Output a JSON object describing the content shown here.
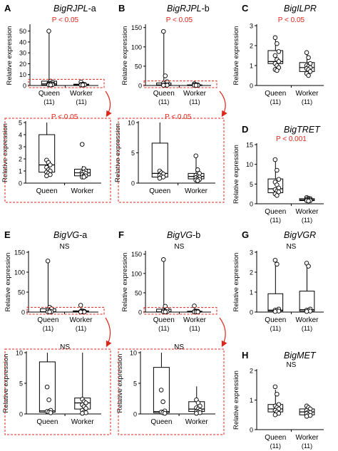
{
  "figure": {
    "ylabel": "Relative expression",
    "colors": {
      "sig": "#e0251b",
      "axis": "#000000",
      "box": "#000000",
      "dash": "#e0251b"
    }
  },
  "chart_data": [
    {
      "panel_letter": "A",
      "gene": "BigRJPL",
      "gene_suffix": "-a",
      "type": "boxplot",
      "stat": "P < 0.05",
      "stat_significant": true,
      "categories": [
        "Queen",
        "Worker"
      ],
      "counts": [
        "(11)",
        "(11)"
      ],
      "ylabel": "Relative expression",
      "ylim": [
        0,
        55
      ],
      "yticks": [
        0,
        10,
        20,
        30,
        40,
        50
      ],
      "zoom_region": [
        0,
        5
      ],
      "groups": [
        {
          "name": "Queen",
          "q1": 0.5,
          "median": 1.5,
          "q3": 4,
          "whisker_low": 0.3,
          "whisker_high": 50,
          "points": [
            50,
            4,
            3,
            2,
            1.8,
            1.5,
            1.2,
            0.8,
            0.7,
            0.6,
            0.5
          ]
        },
        {
          "name": "Worker",
          "q1": 0.6,
          "median": 0.9,
          "q3": 1.2,
          "whisker_low": 0.5,
          "whisker_high": 3.2,
          "points": [
            3.2,
            1.2,
            1.0,
            0.9,
            0.9,
            0.8,
            0.7,
            0.6,
            0.6,
            0.5,
            0.5
          ]
        }
      ]
    },
    {
      "panel_letter": "",
      "gene": "",
      "gene_suffix": "",
      "type": "boxplot",
      "stat": "P < 0.05",
      "stat_significant": true,
      "categories": [
        "Queen",
        "Worker"
      ],
      "counts": [],
      "ylabel": "Relative expression",
      "ylim": [
        0,
        5
      ],
      "yticks": [
        0,
        1,
        2,
        3,
        4,
        5
      ],
      "groups": [
        {
          "name": "Queen",
          "q1": 0.9,
          "median": 1.5,
          "q3": 4,
          "whisker_low": 0.6,
          "whisker_high": 5,
          "points": [
            1.9,
            1.7,
            1.5,
            1.3,
            1.1,
            1.0,
            0.9,
            0.8,
            0.7,
            0.6
          ]
        },
        {
          "name": "Worker",
          "q1": 0.6,
          "median": 0.85,
          "q3": 1.15,
          "whisker_low": 0.5,
          "whisker_high": 1.4,
          "points": [
            3.2,
            1.2,
            1.0,
            0.9,
            0.9,
            0.8,
            0.7,
            0.6,
            0.6,
            0.5,
            0.5
          ]
        }
      ]
    },
    {
      "panel_letter": "B",
      "gene": "BigRJPL",
      "gene_suffix": "-b",
      "type": "boxplot",
      "stat": "P < 0.05",
      "stat_significant": true,
      "categories": [
        "Queen",
        "Worker"
      ],
      "counts": [
        "(11)",
        "(11)"
      ],
      "ylabel": "Relative expression",
      "ylim": [
        0,
        155
      ],
      "yticks": [
        0,
        50,
        100,
        150
      ],
      "zoom_region": [
        0,
        10
      ],
      "groups": [
        {
          "name": "Queen",
          "q1": 0.8,
          "median": 1.5,
          "q3": 6.5,
          "whisker_low": 0.5,
          "whisker_high": 140,
          "points": [
            140,
            25,
            10,
            6,
            2,
            1.5,
            1.2,
            1,
            0.8,
            0.6
          ]
        },
        {
          "name": "Worker",
          "q1": 0.6,
          "median": 1.0,
          "q3": 1.6,
          "whisker_low": 0.4,
          "whisker_high": 4.5,
          "points": [
            4.5,
            2,
            1.6,
            1.3,
            1.1,
            1,
            0.9,
            0.7,
            0.6,
            0.5,
            0.4
          ]
        }
      ]
    },
    {
      "panel_letter": "",
      "gene": "",
      "gene_suffix": "",
      "type": "boxplot",
      "stat": "P < 0.05",
      "stat_significant": true,
      "categories": [
        "Queen",
        "Worker"
      ],
      "counts": [],
      "ylabel": "Relative expression",
      "ylim": [
        0,
        10
      ],
      "yticks": [
        0,
        5,
        10
      ],
      "groups": [
        {
          "name": "Queen",
          "q1": 1.0,
          "median": 1.6,
          "q3": 6.6,
          "whisker_low": 0.6,
          "whisker_high": 10,
          "points": [
            2.0,
            1.7,
            1.5,
            1.3,
            1.1,
            1.0,
            0.8
          ]
        },
        {
          "name": "Worker",
          "q1": 0.7,
          "median": 1.1,
          "q3": 1.6,
          "whisker_low": 0.4,
          "whisker_high": 4.3,
          "points": [
            4.5,
            2.2,
            1.6,
            1.3,
            1.1,
            1.0,
            0.9,
            0.7,
            0.6,
            0.5,
            0.4
          ]
        }
      ]
    },
    {
      "panel_letter": "C",
      "gene": "BigILPR",
      "gene_suffix": "",
      "type": "boxplot",
      "stat": "P < 0.05",
      "stat_significant": true,
      "categories": [
        "Queen",
        "Worker"
      ],
      "counts": [
        "(11)",
        "(11)"
      ],
      "ylabel": "Relative expression",
      "ylim": [
        0,
        3
      ],
      "yticks": [
        0,
        1,
        2,
        3
      ],
      "groups": [
        {
          "name": "Queen",
          "q1": 1.1,
          "median": 1.2,
          "q3": 1.75,
          "whisker_low": 0.8,
          "whisker_high": 2.4,
          "points": [
            2.4,
            2.1,
            1.7,
            1.5,
            1.3,
            1.2,
            1.1,
            1.0,
            0.9,
            0.8,
            0.75
          ]
        },
        {
          "name": "Worker",
          "q1": 0.7,
          "median": 0.9,
          "q3": 1.15,
          "whisker_low": 0.5,
          "whisker_high": 1.65,
          "points": [
            1.65,
            1.4,
            1.1,
            1.0,
            0.95,
            0.9,
            0.85,
            0.8,
            0.7,
            0.6,
            0.5
          ]
        }
      ]
    },
    {
      "panel_letter": "D",
      "gene": "BigTRET",
      "gene_suffix": "",
      "type": "boxplot",
      "stat": "P < 0.001",
      "stat_significant": true,
      "categories": [
        "Queen",
        "Worker"
      ],
      "counts": [
        "(11)",
        "(11)"
      ],
      "ylabel": "Relative expression",
      "ylim": [
        0,
        15
      ],
      "yticks": [
        0,
        5,
        10,
        15
      ],
      "groups": [
        {
          "name": "Queen",
          "q1": 2.8,
          "median": 3.8,
          "q3": 6.3,
          "whisker_low": 2.0,
          "whisker_high": 11.5,
          "points": [
            11.2,
            8.5,
            6.2,
            5.5,
            4.8,
            4.0,
            3.6,
            3.2,
            3.0,
            2.5,
            2.1
          ]
        },
        {
          "name": "Worker",
          "q1": 0.8,
          "median": 1.0,
          "q3": 1.3,
          "whisker_low": 0.7,
          "whisker_high": 1.6,
          "points": [
            1.6,
            1.4,
            1.3,
            1.2,
            1.1,
            1.0,
            0.9,
            0.9,
            0.8,
            0.8,
            0.7
          ]
        }
      ]
    },
    {
      "panel_letter": "E",
      "gene": "BigVG",
      "gene_suffix": "-a",
      "type": "boxplot",
      "stat": "NS",
      "stat_significant": false,
      "categories": [
        "Queen",
        "Worker"
      ],
      "counts": [
        "(11)",
        "(11)"
      ],
      "ylabel": "Relative expression",
      "ylim": [
        0,
        150
      ],
      "yticks": [
        0,
        50,
        100,
        150
      ],
      "zoom_region": [
        0,
        10
      ],
      "groups": [
        {
          "name": "Queen",
          "q1": 0.5,
          "median": 0.8,
          "q3": 8.5,
          "whisker_low": 0.3,
          "whisker_high": 130,
          "points": [
            128,
            12,
            8,
            5,
            3,
            1,
            0.5,
            0.4
          ]
        },
        {
          "name": "Worker",
          "q1": 0.5,
          "median": 1.5,
          "q3": 3,
          "whisker_low": 0.2,
          "whisker_high": 17,
          "points": [
            17,
            3,
            2,
            1.5,
            1,
            0.8,
            0.5,
            0.4,
            0.3,
            0.2
          ]
        }
      ]
    },
    {
      "panel_letter": "",
      "gene": "",
      "gene_suffix": "",
      "type": "boxplot",
      "stat": "NS",
      "stat_significant": false,
      "categories": [
        "Queen",
        "Worker"
      ],
      "counts": [],
      "ylabel": "Relative expression",
      "ylim": [
        0,
        10
      ],
      "yticks": [
        0,
        5,
        10
      ],
      "groups": [
        {
          "name": "Queen",
          "q1": 0.3,
          "median": 0.5,
          "q3": 8.5,
          "whisker_low": 0.1,
          "whisker_high": 10,
          "points": [
            4.4,
            2.3,
            0.6,
            0.4,
            0.3,
            0.2
          ]
        },
        {
          "name": "Worker",
          "q1": 0.8,
          "median": 1.8,
          "q3": 2.6,
          "whisker_low": 0.1,
          "whisker_high": 10,
          "points": [
            2.4,
            2.0,
            1.8,
            1.5,
            1.2,
            0.9,
            0.6,
            0.3,
            0.2,
            0.1
          ]
        }
      ]
    },
    {
      "panel_letter": "F",
      "gene": "BigVG",
      "gene_suffix": "-b",
      "type": "boxplot",
      "stat": "NS",
      "stat_significant": false,
      "categories": [
        "Queen",
        "Worker"
      ],
      "counts": [
        "(11)",
        "(11)"
      ],
      "ylabel": "Relative expression",
      "ylim": [
        0,
        155
      ],
      "yticks": [
        0,
        50,
        100,
        150
      ],
      "zoom_region": [
        0,
        10
      ],
      "groups": [
        {
          "name": "Queen",
          "q1": 0.3,
          "median": 0.6,
          "q3": 7.5,
          "whisker_low": 0.1,
          "whisker_high": 138,
          "points": [
            136,
            15,
            7,
            4,
            2,
            1,
            0.6,
            0.3
          ]
        },
        {
          "name": "Worker",
          "q1": 0.4,
          "median": 0.8,
          "q3": 2.2,
          "whisker_low": 0.2,
          "whisker_high": 16,
          "points": [
            16,
            2.5,
            2,
            1.3,
            0.9,
            0.6,
            0.4,
            0.3,
            0.2
          ]
        }
      ]
    },
    {
      "panel_letter": "",
      "gene": "",
      "gene_suffix": "",
      "type": "boxplot",
      "stat": "NS",
      "stat_significant": false,
      "categories": [
        "Queen",
        "Worker"
      ],
      "counts": [],
      "ylabel": "Relative expression",
      "ylim": [
        0,
        10
      ],
      "yticks": [
        0,
        5,
        10
      ],
      "groups": [
        {
          "name": "Queen",
          "q1": 0.2,
          "median": 0.4,
          "q3": 7.6,
          "whisker_low": 0.1,
          "whisker_high": 10,
          "points": [
            3.9,
            2.0,
            0.5,
            0.3,
            0.2,
            0.1
          ]
        },
        {
          "name": "Worker",
          "q1": 0.4,
          "median": 0.8,
          "q3": 2.0,
          "whisker_low": 0.1,
          "whisker_high": 4.5,
          "points": [
            2.3,
            1.8,
            1.3,
            1.0,
            0.8,
            0.6,
            0.4,
            0.3,
            0.2,
            0.1
          ]
        }
      ]
    },
    {
      "panel_letter": "G",
      "gene": "BigVGR",
      "gene_suffix": "",
      "type": "boxplot",
      "stat": "NS",
      "stat_significant": false,
      "categories": [
        "Queen",
        "Worker"
      ],
      "counts": [
        "(11)",
        "(11)"
      ],
      "ylabel": "Relative expression",
      "ylim": [
        0,
        3
      ],
      "yticks": [
        0,
        1,
        2,
        3
      ],
      "groups": [
        {
          "name": "Queen",
          "q1": 0.05,
          "median": 0.1,
          "q3": 0.92,
          "whisker_low": 0.0,
          "whisker_high": 2.55,
          "points": [
            2.6,
            2.4,
            0.15,
            0.1,
            0.08,
            0.05,
            0.03
          ]
        },
        {
          "name": "Worker",
          "q1": 0.05,
          "median": 0.12,
          "q3": 1.05,
          "whisker_low": 0.0,
          "whisker_high": 2.55,
          "points": [
            2.45,
            2.3,
            0.15,
            0.1,
            0.08,
            0.05,
            0.03
          ]
        }
      ]
    },
    {
      "panel_letter": "H",
      "gene": "BigMET",
      "gene_suffix": "",
      "type": "boxplot",
      "stat": "NS",
      "stat_significant": false,
      "categories": [
        "Queen",
        "Worker"
      ],
      "counts": [
        "(11)",
        "(11)"
      ],
      "ylabel": "Relative expression",
      "ylim": [
        0,
        2
      ],
      "yticks": [
        0,
        1,
        2
      ],
      "groups": [
        {
          "name": "Queen",
          "q1": 0.6,
          "median": 0.7,
          "q3": 0.85,
          "whisker_low": 0.5,
          "whisker_high": 1.35,
          "points": [
            1.45,
            1.2,
            0.85,
            0.8,
            0.75,
            0.7,
            0.65,
            0.6,
            0.55,
            0.5
          ]
        },
        {
          "name": "Worker",
          "q1": 0.5,
          "median": 0.6,
          "q3": 0.7,
          "whisker_low": 0.45,
          "whisker_high": 0.85,
          "points": [
            0.8,
            0.75,
            0.7,
            0.65,
            0.6,
            0.58,
            0.55,
            0.5,
            0.48,
            0.45
          ]
        }
      ]
    }
  ]
}
